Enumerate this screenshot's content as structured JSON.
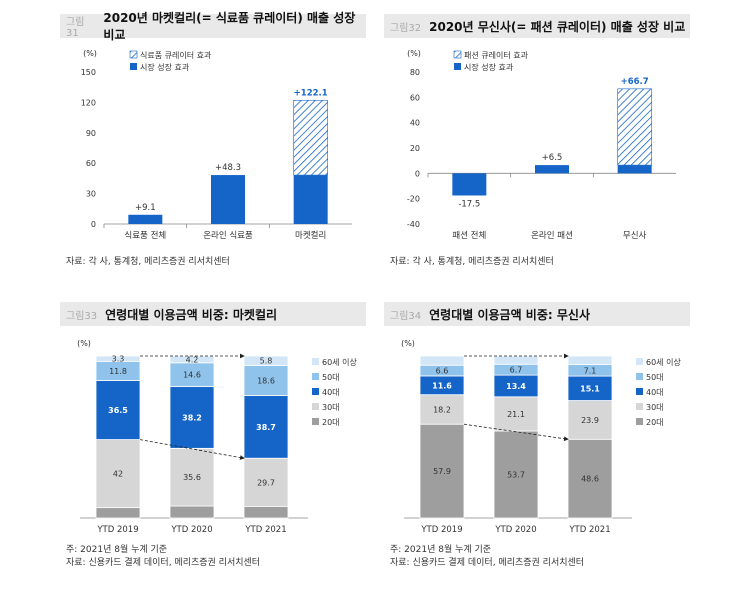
{
  "colors": {
    "solid": "#1565c8",
    "accent_text": "#1565c8"
  },
  "chart_data": [
    {
      "id": "c31",
      "type": "bar",
      "fig_no": "그림31",
      "title": "2020년 마켓컬리(= 식료품 큐레이터) 매출 성장 비교",
      "unit": "(%)",
      "categories": [
        "식료품 전체",
        "온라인 식료품",
        "마켓컬리"
      ],
      "series": [
        {
          "name": "시장 성장 효과",
          "values": [
            9.1,
            48.3,
            48.3
          ]
        },
        {
          "name": "식료품 큐레이터 효과",
          "values": [
            0,
            0,
            73.8
          ]
        }
      ],
      "totals": [
        "+9.1",
        "+48.3",
        "+122.1"
      ],
      "legend": [
        "식료품 큐레이터 효과",
        "시장 성장 효과"
      ],
      "yticks": [
        0,
        30,
        60,
        90,
        120,
        150
      ],
      "ylim": [
        0,
        150
      ],
      "source": "자료: 각 사, 통계청, 메리츠증권 리서치센터"
    },
    {
      "id": "c32",
      "type": "bar",
      "fig_no": "그림32",
      "title": "2020년 무신사(= 패션 큐레이터) 매출 성장 비교",
      "unit": "(%)",
      "categories": [
        "패션 전체",
        "온라인 패션",
        "무신사"
      ],
      "series": [
        {
          "name": "시장 성장 효과",
          "values": [
            -17.5,
            6.5,
            6.5
          ]
        },
        {
          "name": "패션 큐레이터 효과",
          "values": [
            0,
            0,
            60.2
          ]
        }
      ],
      "totals": [
        "-17.5",
        "+6.5",
        "+66.7"
      ],
      "legend": [
        "패션 큐레이터 효과",
        "시장 성장 효과"
      ],
      "yticks": [
        -40,
        -20,
        0,
        20,
        40,
        60,
        80
      ],
      "ylim": [
        -40,
        80
      ],
      "source": "자료: 각 사, 통계청, 메리츠증권 리서치센터"
    },
    {
      "id": "c33",
      "type": "stacked-bar",
      "fig_no": "그림33",
      "title": "연령대별 이용금액 비중: 마켓컬리",
      "unit": "(%)",
      "categories": [
        "YTD 2019",
        "YTD 2020",
        "YTD 2021"
      ],
      "series": [
        {
          "name": "20대",
          "values": [
            6.4,
            7.4,
            7.2
          ]
        },
        {
          "name": "30대",
          "values": [
            42,
            35.6,
            29.7
          ]
        },
        {
          "name": "40대",
          "values": [
            36.5,
            38.2,
            38.7
          ]
        },
        {
          "name": "50대",
          "values": [
            11.8,
            14.6,
            18.6
          ]
        },
        {
          "name": "60세 이상",
          "values": [
            3.3,
            4.2,
            5.8
          ]
        }
      ],
      "labels": [
        [
          "",
          "42",
          "36.5",
          "11.8",
          "3.3"
        ],
        [
          "",
          "35.6",
          "38.2",
          "14.6",
          "4.2"
        ],
        [
          "",
          "29.7",
          "38.7",
          "18.6",
          "5.8"
        ]
      ],
      "legend": [
        "60세 이상",
        "50대",
        "40대",
        "30대",
        "20대"
      ],
      "note": "주: 2021년 8월 누계 기준",
      "source": "자료: 신용카드 결제 데이터, 메리츠증권 리서치센터"
    },
    {
      "id": "c34",
      "type": "stacked-bar",
      "fig_no": "그림34",
      "title": "연령대별 이용금액 비중: 무신사",
      "unit": "(%)",
      "categories": [
        "YTD 2019",
        "YTD 2020",
        "YTD 2021"
      ],
      "series": [
        {
          "name": "20대",
          "values": [
            57.9,
            53.7,
            48.6
          ]
        },
        {
          "name": "30대",
          "values": [
            18.2,
            21.1,
            23.9
          ]
        },
        {
          "name": "40대",
          "values": [
            11.6,
            13.4,
            15.1
          ]
        },
        {
          "name": "50대",
          "values": [
            6.6,
            6.7,
            7.1
          ]
        },
        {
          "name": "60세 이상",
          "values": [
            5.7,
            5.1,
            5.3
          ]
        }
      ],
      "labels": [
        [
          "57.9",
          "18.2",
          "11.6",
          "6.6",
          ""
        ],
        [
          "53.7",
          "21.1",
          "13.4",
          "6.7",
          ""
        ],
        [
          "48.6",
          "23.9",
          "15.1",
          "7.1",
          ""
        ]
      ],
      "legend": [
        "60세 이상",
        "50대",
        "40대",
        "30대",
        "20대"
      ],
      "note": "주: 2021년 8월 누계 기준",
      "source": "자료: 신용카드 결제 데이터, 메리츠증권 리서치센터"
    }
  ]
}
